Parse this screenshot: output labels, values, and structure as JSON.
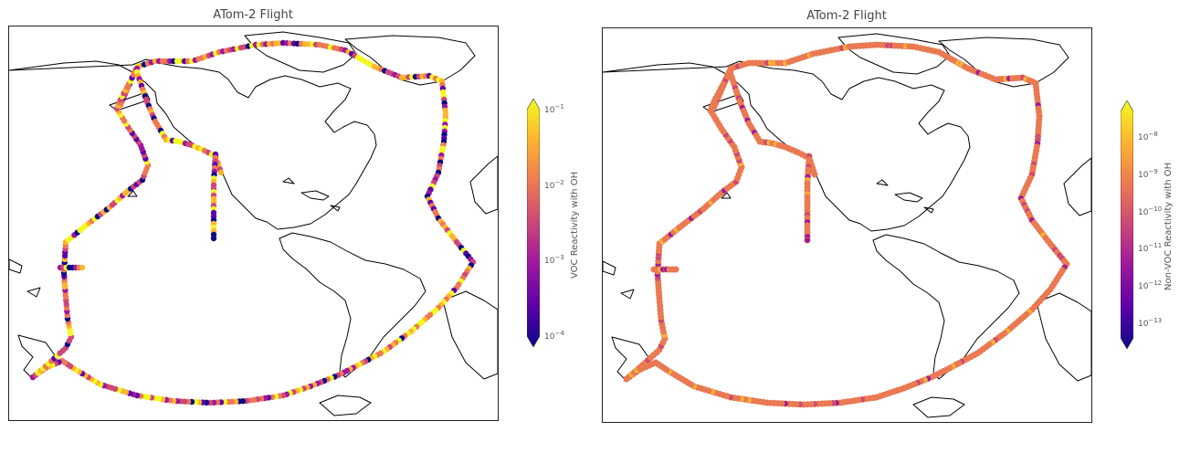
{
  "panels": [
    {
      "title": "ATom-2 Flight",
      "colorbar": {
        "label": "VOC Reactivity with OH",
        "colormap": "plasma",
        "ticks": [
          {
            "base": "10",
            "exp": "−1"
          },
          {
            "base": "10",
            "exp": "−2"
          },
          {
            "base": "10",
            "exp": "−3"
          },
          {
            "base": "10",
            "exp": "−4"
          }
        ]
      }
    },
    {
      "title": "ATom-2 Flight",
      "colorbar": {
        "label": "Non-VOC Reactivity with OH",
        "colormap": "plasma",
        "ticks": [
          {
            "base": "10",
            "exp": "−8"
          },
          {
            "base": "10",
            "exp": "−9"
          },
          {
            "base": "10",
            "exp": "−10"
          },
          {
            "base": "10",
            "exp": "−11"
          },
          {
            "base": "10",
            "exp": "−12"
          },
          {
            "base": "10",
            "exp": "−13"
          }
        ]
      }
    }
  ],
  "colors": {
    "plasma": [
      "#0d0887",
      "#5c01a6",
      "#9c179e",
      "#cc4778",
      "#ed7953",
      "#fdb42f",
      "#f0f921"
    ]
  }
}
